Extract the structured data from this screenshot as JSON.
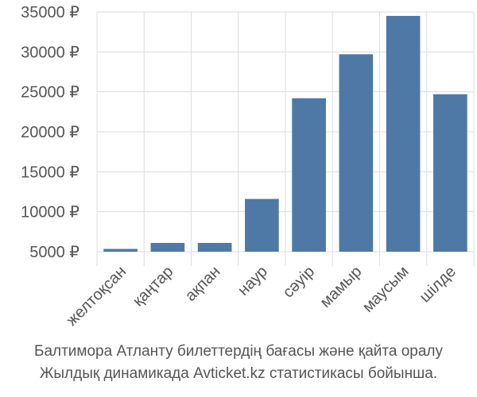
{
  "caption": {
    "line1": "Балтимора Атланту билеттердің бағасы және қайта оралу",
    "line2": "Жылдық динамикада Avticket.kz статистикасы бойынша."
  },
  "colors": {
    "bar": "#4e79a7",
    "grid": "#dddddd",
    "text": "#555555"
  },
  "chart_data": {
    "type": "bar",
    "categories": [
      "желтоқсан",
      "қаңтар",
      "ақпан",
      "наур",
      "сәуір",
      "мамыр",
      "маусым",
      "шілде"
    ],
    "values": [
      5350,
      6100,
      6100,
      11600,
      24200,
      29700,
      34500,
      24700
    ],
    "yticks": [
      "5000 ₽",
      "10000 ₽",
      "15000 ₽",
      "20000 ₽",
      "25000 ₽",
      "30000 ₽",
      "35000 ₽"
    ],
    "ytick_values": [
      5000,
      10000,
      15000,
      20000,
      25000,
      30000,
      35000
    ],
    "ylim": [
      5000,
      35000
    ],
    "grid": true
  }
}
